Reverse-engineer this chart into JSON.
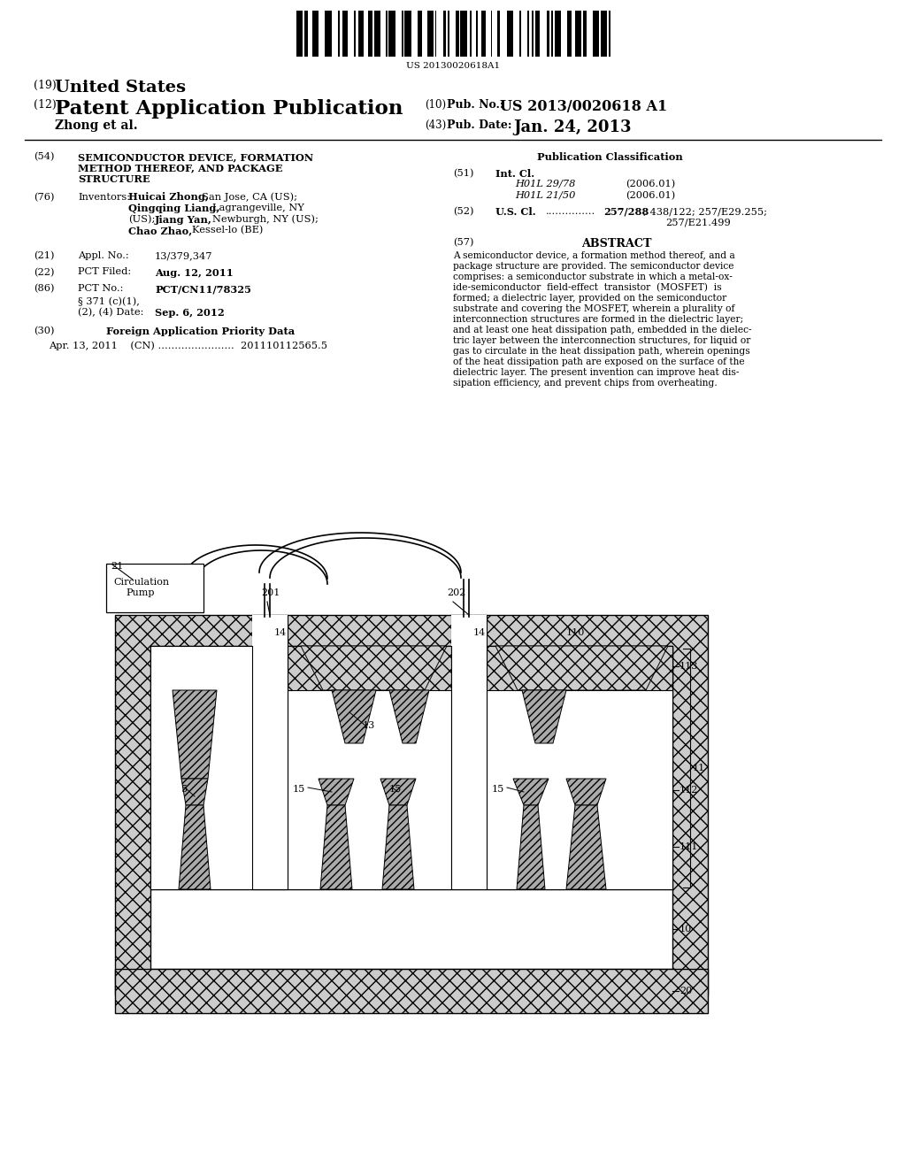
{
  "bg_color": "#ffffff",
  "barcode_text": "US 20130020618A1",
  "country": "(19) United States",
  "pub_type_num": "(12)",
  "pub_type_text": "Patent Application Publication",
  "inventors_line": "Zhong et al.",
  "pub_no_label": "(10) Pub. No.: ",
  "pub_no_value": "US 2013/0020618 A1",
  "pub_date_label": "(43) Pub. Date:",
  "pub_date_value": "Jan. 24, 2013",
  "abstract_text": "A semiconductor device, a formation method thereof, and a package structure are provided. The semiconductor device comprises: a semiconductor substrate in which a metal-ox-ide-semiconductor field-effect transistor (MOSFET) is formed; a dielectric layer, provided on the semiconductor substrate and covering the MOSFET, wherein a plurality of interconnection structures are formed in the dielectric layer; and at least one heat dissipation path, embedded in the dielec-tric layer between the interconnection structures, for liquid or gas to circulate in the heat dissipation path, wherein openings of the heat dissipation path are exposed on the surface of the dielectric layer. The present invention can improve heat dis-sipation efficiency, and prevent chips from overheating."
}
